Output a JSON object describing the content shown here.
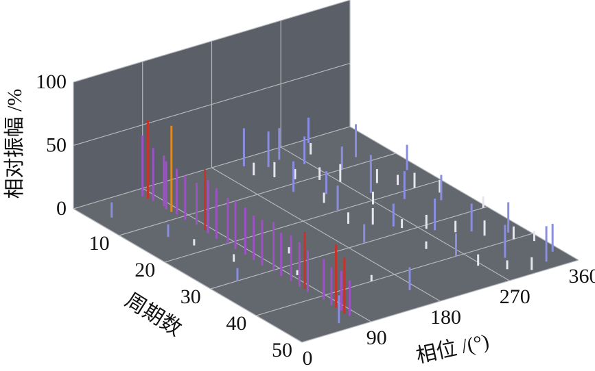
{
  "chart_data": {
    "type": "stem3d",
    "zlabel": "相对振幅 /%",
    "ylabel": "周期数",
    "xlabel": "相位 /(°)",
    "xlim": [
      0,
      360
    ],
    "xticks": [
      0,
      90,
      180,
      270,
      360
    ],
    "ylim": [
      0,
      50
    ],
    "yticks": [
      10,
      20,
      30,
      40,
      50
    ],
    "zlim": [
      0,
      100
    ],
    "zticks": [
      0,
      50,
      100
    ],
    "grid": true,
    "series": [
      {
        "color": "#9c52c4",
        "x": [
          78,
          80,
          82,
          79,
          81,
          80,
          83,
          80,
          79,
          82,
          80,
          81,
          80,
          79,
          82,
          80,
          81,
          80,
          79,
          82,
          80,
          81,
          80
        ],
        "y": [
          2,
          4,
          6,
          7,
          9,
          11,
          13,
          16,
          18,
          20,
          22,
          24,
          26,
          28,
          30,
          32,
          34,
          36,
          38,
          41,
          43,
          45,
          47
        ],
        "values": [
          48,
          42,
          40,
          38,
          36,
          35,
          33,
          42,
          40,
          36,
          38,
          37,
          35,
          36,
          38,
          34,
          36,
          35,
          33,
          32,
          30,
          31,
          28
        ]
      },
      {
        "color": "#c83228",
        "x": [
          79,
          82,
          81,
          80,
          79
        ],
        "y": [
          3,
          15,
          37,
          44,
          46
        ],
        "values": [
          62,
          48,
          45,
          50,
          44
        ]
      },
      {
        "color": "#e08a1e",
        "x": [
          80
        ],
        "y": [
          8
        ],
        "values": [
          68
        ]
      },
      {
        "color": "#8a8ee0",
        "x": [
          210,
          230,
          250,
          265,
          300,
          320,
          215,
          240,
          280,
          300,
          330,
          250,
          280,
          310,
          340,
          225,
          260,
          300,
          350,
          330,
          20,
          40,
          35,
          170,
          60,
          290,
          345,
          200
        ],
        "y": [
          2,
          4,
          3,
          6,
          1,
          8,
          12,
          15,
          18,
          22,
          25,
          28,
          32,
          35,
          38,
          20,
          40,
          44,
          46,
          48,
          5,
          14,
          30,
          45,
          48,
          10,
          15,
          30
        ],
        "values": [
          30,
          28,
          25,
          22,
          20,
          26,
          24,
          18,
          30,
          22,
          20,
          18,
          25,
          22,
          24,
          20,
          18,
          26,
          22,
          28,
          12,
          10,
          10,
          18,
          22,
          18,
          20,
          15
        ]
      },
      {
        "color": "#e6e6f0",
        "x": [
          205,
          220,
          235,
          255,
          270,
          285,
          300,
          315,
          325,
          340,
          215,
          235,
          255,
          275,
          295,
          315,
          335,
          350,
          245,
          265,
          285,
          305,
          225,
          265,
          355,
          60,
          50,
          150,
          95,
          120
        ],
        "y": [
          5,
          7,
          9,
          11,
          13,
          4,
          16,
          18,
          20,
          23,
          24,
          26,
          29,
          31,
          34,
          37,
          40,
          42,
          36,
          44,
          47,
          49,
          17,
          21,
          30,
          25,
          18,
          40,
          33,
          27
        ],
        "values": [
          10,
          12,
          8,
          10,
          14,
          9,
          11,
          8,
          12,
          10,
          9,
          13,
          7,
          11,
          9,
          12,
          10,
          8,
          6,
          9,
          7,
          10,
          8,
          10,
          9,
          6,
          5,
          5,
          4,
          5
        ]
      }
    ]
  }
}
